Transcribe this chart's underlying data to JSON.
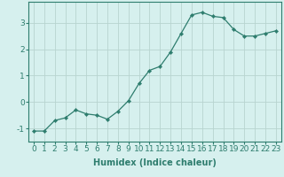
{
  "x": [
    0,
    1,
    2,
    3,
    4,
    5,
    6,
    7,
    8,
    9,
    10,
    11,
    12,
    13,
    14,
    15,
    16,
    17,
    18,
    19,
    20,
    21,
    22,
    23
  ],
  "y": [
    -1.1,
    -1.1,
    -0.7,
    -0.6,
    -0.3,
    -0.45,
    -0.5,
    -0.65,
    -0.35,
    0.05,
    0.7,
    1.2,
    1.35,
    1.9,
    2.6,
    3.3,
    3.4,
    3.25,
    3.2,
    2.75,
    2.5,
    2.5,
    2.6,
    2.7
  ],
  "line_color": "#2e7d6e",
  "marker": "D",
  "marker_size": 2.2,
  "bg_color": "#d6f0ee",
  "grid_color": "#b8d4d0",
  "xlabel": "Humidex (Indice chaleur)",
  "xlim": [
    -0.5,
    23.5
  ],
  "ylim": [
    -1.5,
    3.8
  ],
  "yticks": [
    -1,
    0,
    1,
    2,
    3
  ],
  "xticks": [
    0,
    1,
    2,
    3,
    4,
    5,
    6,
    7,
    8,
    9,
    10,
    11,
    12,
    13,
    14,
    15,
    16,
    17,
    18,
    19,
    20,
    21,
    22,
    23
  ],
  "xlabel_fontsize": 7,
  "tick_fontsize": 6.5
}
